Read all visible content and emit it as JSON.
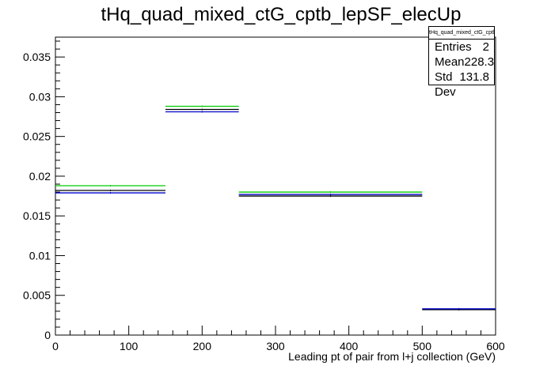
{
  "chart_data": {
    "type": "histogram",
    "title": "tHq_quad_mixed_ctG_cptb_lepSF_elecUp",
    "xlabel": "Leading pt of pair from l+j collection (GeV)",
    "ylabel": "",
    "xlim": [
      0,
      600
    ],
    "ylim": [
      0,
      0.0375
    ],
    "x_ticks": [
      0,
      100,
      200,
      300,
      400,
      500,
      600
    ],
    "x_tick_labels": [
      "0",
      "100",
      "200",
      "300",
      "400",
      "500",
      "600"
    ],
    "y_ticks": [
      0,
      0.005,
      0.01,
      0.015,
      0.02,
      0.025,
      0.03,
      0.035
    ],
    "y_tick_labels": [
      "0",
      "0.005",
      "0.01",
      "0.015",
      "0.02",
      "0.025",
      "0.03",
      "0.035"
    ],
    "bin_edges": [
      0,
      150,
      250,
      500,
      600
    ],
    "series": [
      {
        "color": "#00cc00",
        "values": [
          0.0188,
          0.0288,
          0.018,
          0.0032
        ]
      },
      {
        "color": "#000000",
        "values": [
          0.0182,
          0.0284,
          0.0175,
          0.0032
        ]
      },
      {
        "color": "#0000cc",
        "values": [
          0.0179,
          0.0281,
          0.0177,
          0.0033
        ]
      }
    ],
    "legend": "top-right",
    "grid": false
  },
  "stats": {
    "name": "tHq_quad_mixed_ctG_cptb_lepSF_elecUp",
    "rows": [
      {
        "label": "Entries",
        "value": "2"
      },
      {
        "label": "Mean",
        "value": "228.3"
      },
      {
        "label": "Std Dev",
        "value": "131.8"
      }
    ]
  }
}
